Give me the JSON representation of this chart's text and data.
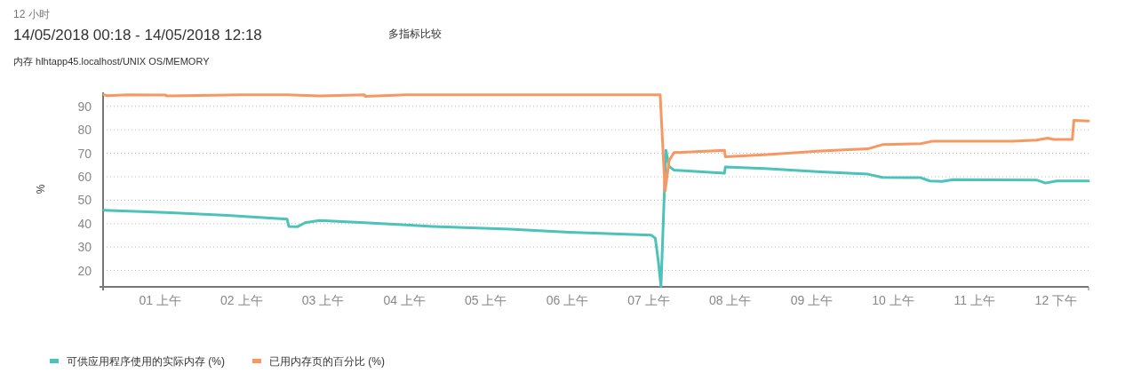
{
  "chart_data": {
    "type": "line",
    "title": "14/05/2018 00:18 - 14/05/2018 12:18",
    "subtitle": "内存 hlhtapp45.localhost/UNIX OS/MEMORY",
    "annotations": [
      "12 小时",
      "多指标比较"
    ],
    "ylabel": "%",
    "xlim": [
      0.3,
      12.4
    ],
    "ylim": [
      13,
      96
    ],
    "yticks": [
      20,
      30,
      40,
      50,
      60,
      70,
      80,
      90
    ],
    "xticks": [
      {
        "value": 1,
        "label": "01 上午"
      },
      {
        "value": 2,
        "label": "02 上午"
      },
      {
        "value": 3,
        "label": "03 上午"
      },
      {
        "value": 4,
        "label": "04 上午"
      },
      {
        "value": 5,
        "label": "05 上午"
      },
      {
        "value": 6,
        "label": "06 上午"
      },
      {
        "value": 7,
        "label": "07 上午"
      },
      {
        "value": 8,
        "label": "08 上午"
      },
      {
        "value": 9,
        "label": "09 上午"
      },
      {
        "value": 10,
        "label": "10 上午"
      },
      {
        "value": 11,
        "label": "11 上午"
      },
      {
        "value": 12,
        "label": "12 下午"
      }
    ],
    "grid": "y",
    "legend": "bottom left",
    "marker": "none",
    "line_style": "solid",
    "series": [
      {
        "name": "可供应用程序使用的实际内存 (%)",
        "color": "#4cc2b8",
        "x": [
          0.31,
          1.07,
          1.87,
          2.56,
          2.58,
          2.69,
          2.78,
          2.96,
          3.51,
          4.02,
          4.34,
          5.29,
          6.02,
          7.03,
          7.08,
          7.12,
          7.15,
          7.21,
          7.25,
          7.31,
          7.93,
          7.94,
          8.42,
          9.11,
          9.69,
          9.87,
          10.34,
          10.45,
          10.6,
          10.74,
          11.76,
          11.87,
          12.01,
          12.4
        ],
        "values": [
          45.7,
          44.7,
          43.4,
          41.9,
          38.8,
          38.7,
          40.4,
          41.3,
          40.4,
          39.4,
          38.8,
          37.6,
          36.3,
          35.1,
          33.8,
          23.2,
          13.2,
          71.3,
          64.4,
          62.8,
          61.5,
          64.2,
          63.5,
          62.1,
          61.1,
          59.7,
          59.6,
          58.2,
          58.0,
          58.8,
          58.6,
          57.3,
          58.2,
          58.2
        ]
      },
      {
        "name": "已用内存页的百分比 (%)",
        "color": "#f79862",
        "x": [
          0.31,
          0.35,
          0.6,
          1.07,
          1.08,
          2.0,
          2.56,
          2.96,
          3.51,
          3.52,
          4.02,
          5.0,
          6.0,
          7.14,
          7.2,
          7.25,
          7.31,
          7.93,
          7.94,
          8.42,
          9.11,
          9.69,
          9.87,
          10.34,
          10.49,
          11.47,
          11.76,
          11.9,
          11.97,
          12.2,
          12.22,
          12.4
        ],
        "values": [
          95.0,
          94.6,
          95.0,
          94.9,
          94.5,
          95.0,
          95.0,
          94.5,
          95.0,
          94.3,
          95.0,
          95.0,
          95.0,
          95.0,
          53.8,
          66.9,
          70.3,
          71.3,
          68.5,
          69.4,
          71.0,
          71.9,
          73.7,
          74.1,
          75.2,
          75.2,
          75.6,
          76.5,
          75.9,
          75.9,
          84.1,
          83.8
        ]
      }
    ]
  }
}
